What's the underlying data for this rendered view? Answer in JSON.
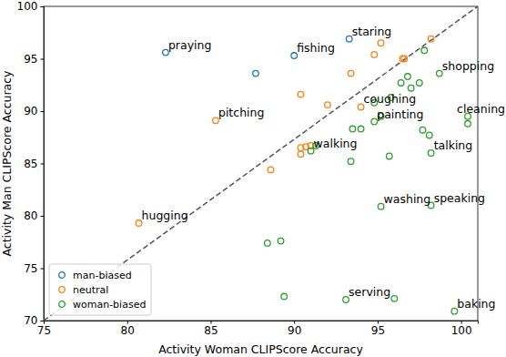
{
  "chart_data": {
    "type": "scatter",
    "x_label": "Activity Woman CLIPScore Accuracy",
    "y_label": "Activity Man CLIPScore Accuracy",
    "xlim": [
      75,
      101
    ],
    "ylim": [
      70,
      100
    ],
    "xticks": [
      75,
      80,
      85,
      90,
      95,
      100
    ],
    "yticks": [
      70,
      75,
      80,
      85,
      90,
      95,
      100
    ],
    "legend": "lower left",
    "grid": false,
    "series": [
      {
        "name": "man-biased",
        "color": "#1f77b4",
        "marker": "circle",
        "x": [
          82.3,
          87.7,
          90.0,
          93.3
        ],
        "y": [
          95.6,
          93.6,
          95.3,
          96.9
        ],
        "labels": [
          "praying",
          null,
          "fishing",
          "staring"
        ]
      },
      {
        "name": "neutral",
        "color": "#ff7f0e",
        "marker": "circle",
        "x": [
          95.2,
          94.8,
          96.5,
          96.6,
          98.2,
          93.4,
          90.4,
          92.0,
          85.3,
          94.0,
          90.4,
          90.7,
          91.0,
          90.4,
          88.6,
          80.7
        ],
        "y": [
          96.5,
          95.4,
          95.0,
          95.0,
          96.9,
          93.6,
          91.6,
          90.6,
          89.1,
          90.4,
          86.5,
          86.6,
          86.7,
          85.9,
          84.4,
          79.3
        ],
        "labels": [
          null,
          null,
          null,
          null,
          null,
          null,
          null,
          null,
          "pitching",
          "coughing",
          null,
          null,
          null,
          null,
          null,
          "hugging"
        ]
      },
      {
        "name": "woman-biased",
        "color": "#2ca02c",
        "marker": "circle",
        "x": [
          98.7,
          97.8,
          96.8,
          96.4,
          97.0,
          97.5,
          95.8,
          94.8,
          94.8,
          95.2,
          94.0,
          93.5,
          100.4,
          100.4,
          97.7,
          98.1,
          98.2,
          95.7,
          93.4,
          91.3,
          91.0,
          95.2,
          98.2,
          88.4,
          89.2,
          89.4,
          93.1,
          96.0,
          99.6
        ],
        "y": [
          93.6,
          95.8,
          93.3,
          92.7,
          92.2,
          92.7,
          91.3,
          90.8,
          89.0,
          89.5,
          88.3,
          88.3,
          89.5,
          88.8,
          88.2,
          87.7,
          86.0,
          85.7,
          85.2,
          86.7,
          86.2,
          80.9,
          81.0,
          77.4,
          77.6,
          72.3,
          72.0,
          72.1,
          70.9
        ],
        "labels": [
          "shopping",
          null,
          null,
          null,
          null,
          null,
          null,
          null,
          "painting",
          null,
          null,
          null,
          "cleaning",
          null,
          null,
          null,
          "talking",
          null,
          null,
          null,
          "walking",
          "washing",
          "speaking",
          null,
          null,
          null,
          "serving",
          null,
          "baking"
        ]
      }
    ]
  }
}
